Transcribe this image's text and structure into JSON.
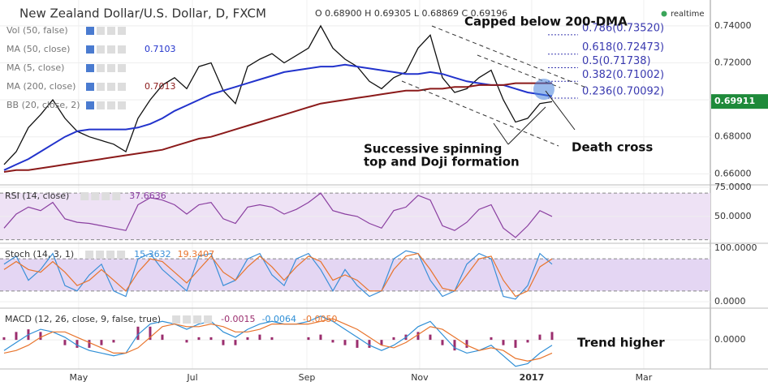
{
  "header": {
    "title": "New Zealand Dollar/U.S. Dollar, D, FXCM",
    "ohlc": "O 0.68900 H 0.69305 L 0.68869 C 0.69196",
    "status": "realtime"
  },
  "annotations": {
    "capped": "Capped below 200-DMA",
    "spinning": [
      "Successive spinning",
      "top and Doji formation"
    ],
    "death_cross": "Death cross",
    "trend": "Trend higher"
  },
  "chart_data": [
    {
      "type": "line",
      "indicators": [
        {
          "label": "Vol (50, false)"
        },
        {
          "label": "MA (50, close)",
          "value_label": "0.7103"
        },
        {
          "label": "MA (5, close)"
        },
        {
          "label": "MA (200, close)",
          "value_label": "0.7013"
        },
        {
          "label": "BB (20, close, 2)"
        }
      ],
      "series": [
        {
          "color": "#111111",
          "values": [
            0.665,
            0.672,
            0.685,
            0.692,
            0.7,
            0.69,
            0.683,
            0.68,
            0.678,
            0.676,
            0.672,
            0.69,
            0.7,
            0.708,
            0.712,
            0.706,
            0.718,
            0.72,
            0.705,
            0.698,
            0.718,
            0.722,
            0.725,
            0.72,
            0.724,
            0.728,
            0.74,
            0.728,
            0.722,
            0.718,
            0.71,
            0.706,
            0.712,
            0.715,
            0.728,
            0.735,
            0.712,
            0.704,
            0.706,
            0.712,
            0.716,
            0.7,
            0.688,
            0.69,
            0.698,
            0.699
          ]
        },
        {
          "color": "#2233cc",
          "values": [
            0.662,
            0.665,
            0.668,
            0.672,
            0.676,
            0.68,
            0.683,
            0.684,
            0.684,
            0.684,
            0.684,
            0.685,
            0.687,
            0.69,
            0.694,
            0.697,
            0.7,
            0.703,
            0.705,
            0.707,
            0.709,
            0.711,
            0.713,
            0.715,
            0.716,
            0.717,
            0.718,
            0.718,
            0.719,
            0.718,
            0.717,
            0.716,
            0.715,
            0.714,
            0.714,
            0.715,
            0.714,
            0.712,
            0.71,
            0.709,
            0.708,
            0.708,
            0.706,
            0.704,
            0.703,
            0.702
          ]
        },
        {
          "color": "#8b1a1a",
          "values": [
            0.661,
            0.662,
            0.662,
            0.663,
            0.664,
            0.665,
            0.666,
            0.667,
            0.668,
            0.669,
            0.67,
            0.671,
            0.672,
            0.673,
            0.675,
            0.677,
            0.679,
            0.68,
            0.682,
            0.684,
            0.686,
            0.688,
            0.69,
            0.692,
            0.694,
            0.696,
            0.698,
            0.699,
            0.7,
            0.701,
            0.702,
            0.703,
            0.704,
            0.705,
            0.705,
            0.706,
            0.706,
            0.707,
            0.707,
            0.708,
            0.708,
            0.708,
            0.709,
            0.709,
            0.709,
            0.709
          ]
        }
      ],
      "fib_levels": [
        {
          "label": "0.786(0.73520)",
          "value": 0.7352
        },
        {
          "label": "0.618(0.72473)",
          "value": 0.72473
        },
        {
          "label": "0.5(0.71738)",
          "value": 0.71738
        },
        {
          "label": "0.382(0.71002)",
          "value": 0.71002
        },
        {
          "label": "0.236(0.70092)",
          "value": 0.70092
        }
      ],
      "last_price": {
        "value": 0.69911,
        "label": "0.69911"
      },
      "xlim": [
        -0.33,
        58
      ],
      "ylim": [
        0.654,
        0.754
      ],
      "yticks": [
        {
          "value": 0.74,
          "label": "0.74000"
        },
        {
          "value": 0.72,
          "label": "0.72000"
        },
        {
          "value": 0.7,
          "label": "0.70000"
        },
        {
          "value": 0.68,
          "label": "0.68000"
        },
        {
          "value": 0.66,
          "label": "0.66000"
        }
      ]
    },
    {
      "type": "line",
      "label": "RSI (14, close)",
      "value_label": "37.6636",
      "band": [
        30,
        70
      ],
      "series": [
        {
          "color": "#8a3fa0",
          "values": [
            40,
            52,
            58,
            55,
            62,
            48,
            45,
            44,
            42,
            40,
            38,
            60,
            66,
            64,
            60,
            52,
            60,
            62,
            48,
            44,
            58,
            60,
            58,
            52,
            56,
            62,
            70,
            55,
            52,
            50,
            44,
            40,
            55,
            58,
            68,
            64,
            42,
            38,
            45,
            56,
            60,
            40,
            32,
            42,
            55,
            50
          ]
        }
      ],
      "xlim": [
        -0.33,
        58
      ],
      "ylim": [
        27,
        77
      ],
      "yticks": [
        {
          "value": 75,
          "label": "75.0000"
        },
        {
          "value": 50,
          "label": "50.0000"
        }
      ]
    },
    {
      "type": "line",
      "label": "Stoch (14, 3, 1)",
      "value_labels": [
        "15.3632",
        "19.3407"
      ],
      "band": [
        20,
        80
      ],
      "series": [
        {
          "color": "#3a8fd8",
          "values": [
            70,
            85,
            40,
            60,
            90,
            30,
            20,
            50,
            70,
            20,
            10,
            80,
            90,
            60,
            40,
            20,
            85,
            90,
            30,
            40,
            80,
            90,
            50,
            30,
            80,
            90,
            60,
            20,
            60,
            30,
            10,
            20,
            80,
            95,
            90,
            40,
            10,
            20,
            70,
            90,
            80,
            10,
            5,
            30,
            90,
            70
          ]
        },
        {
          "color": "#e8742c",
          "values": [
            60,
            75,
            60,
            55,
            75,
            55,
            30,
            40,
            60,
            40,
            20,
            55,
            80,
            75,
            55,
            35,
            60,
            85,
            55,
            40,
            65,
            85,
            65,
            40,
            65,
            85,
            75,
            40,
            50,
            40,
            20,
            20,
            60,
            85,
            90,
            60,
            25,
            20,
            50,
            80,
            85,
            40,
            10,
            20,
            65,
            80
          ]
        }
      ],
      "xlim": [
        -0.33,
        58
      ],
      "ylim": [
        -12,
        109
      ],
      "yticks": [
        {
          "value": 100,
          "label": "100.0000"
        },
        {
          "value": 0,
          "label": "0.0000"
        }
      ]
    },
    {
      "type": "macd",
      "label": "MACD (12, 26, close, 9, false, true)",
      "value_labels": [
        "-0.0015",
        "-0.0064",
        "-0.0050"
      ],
      "histogram": {
        "color": "#9b2e6e",
        "values": [
          0.001,
          0.003,
          0.004,
          0.003,
          0,
          -0.002,
          -0.003,
          -0.003,
          -0.002,
          -0.001,
          0,
          0.005,
          0.005,
          0.002,
          0,
          -0.001,
          0.001,
          0.001,
          -0.002,
          -0.002,
          0.001,
          0.002,
          0.001,
          0,
          0,
          0.001,
          0.002,
          -0.001,
          -0.002,
          -0.003,
          -0.003,
          -0.002,
          0.001,
          0.002,
          0.003,
          0.002,
          -0.002,
          -0.004,
          -0.003,
          0,
          0.001,
          -0.002,
          -0.003,
          -0.001,
          0.002,
          0.003
        ]
      },
      "series": [
        {
          "color": "#2f8fd6",
          "values": [
            -0.004,
            -0.001,
            0.002,
            0.004,
            0.003,
            0.001,
            -0.002,
            -0.004,
            -0.005,
            -0.006,
            -0.005,
            0.002,
            0.006,
            0.007,
            0.006,
            0.004,
            0.006,
            0.007,
            0.003,
            0.001,
            0.004,
            0.006,
            0.007,
            0.006,
            0.006,
            0.007,
            0.009,
            0.007,
            0.004,
            0.001,
            -0.002,
            -0.004,
            -0.002,
            0.001,
            0.005,
            0.007,
            0.002,
            -0.003,
            -0.005,
            -0.004,
            -0.002,
            -0.006,
            -0.01,
            -0.009,
            -0.005,
            -0.002
          ]
        },
        {
          "color": "#e8742c",
          "values": [
            -0.005,
            -0.004,
            -0.002,
            0.001,
            0.003,
            0.003,
            0.001,
            -0.001,
            -0.003,
            -0.005,
            -0.005,
            -0.003,
            0.001,
            0.005,
            0.006,
            0.005,
            0.005,
            0.006,
            0.005,
            0.003,
            0.003,
            0.004,
            0.006,
            0.006,
            0.006,
            0.006,
            0.007,
            0.008,
            0.006,
            0.004,
            0.001,
            -0.002,
            -0.003,
            -0.001,
            0.002,
            0.005,
            0.004,
            0.001,
            -0.002,
            -0.004,
            -0.003,
            -0.004,
            -0.007,
            -0.008,
            -0.007,
            -0.005
          ]
        }
      ],
      "xlim": [
        -0.33,
        58
      ],
      "ylim": [
        -0.011,
        0.012
      ],
      "yticks": [
        {
          "value": 0,
          "label": "0.0000"
        }
      ],
      "xticks": [
        {
          "value": 6.13,
          "label": "May"
        },
        {
          "value": 15.47,
          "label": "Jul"
        },
        {
          "value": 24.87,
          "label": "Sep"
        },
        {
          "value": 34.13,
          "label": "Nov"
        },
        {
          "value": 43.33,
          "label": "2017"
        },
        {
          "value": 52.53,
          "label": "Mar"
        }
      ]
    }
  ]
}
